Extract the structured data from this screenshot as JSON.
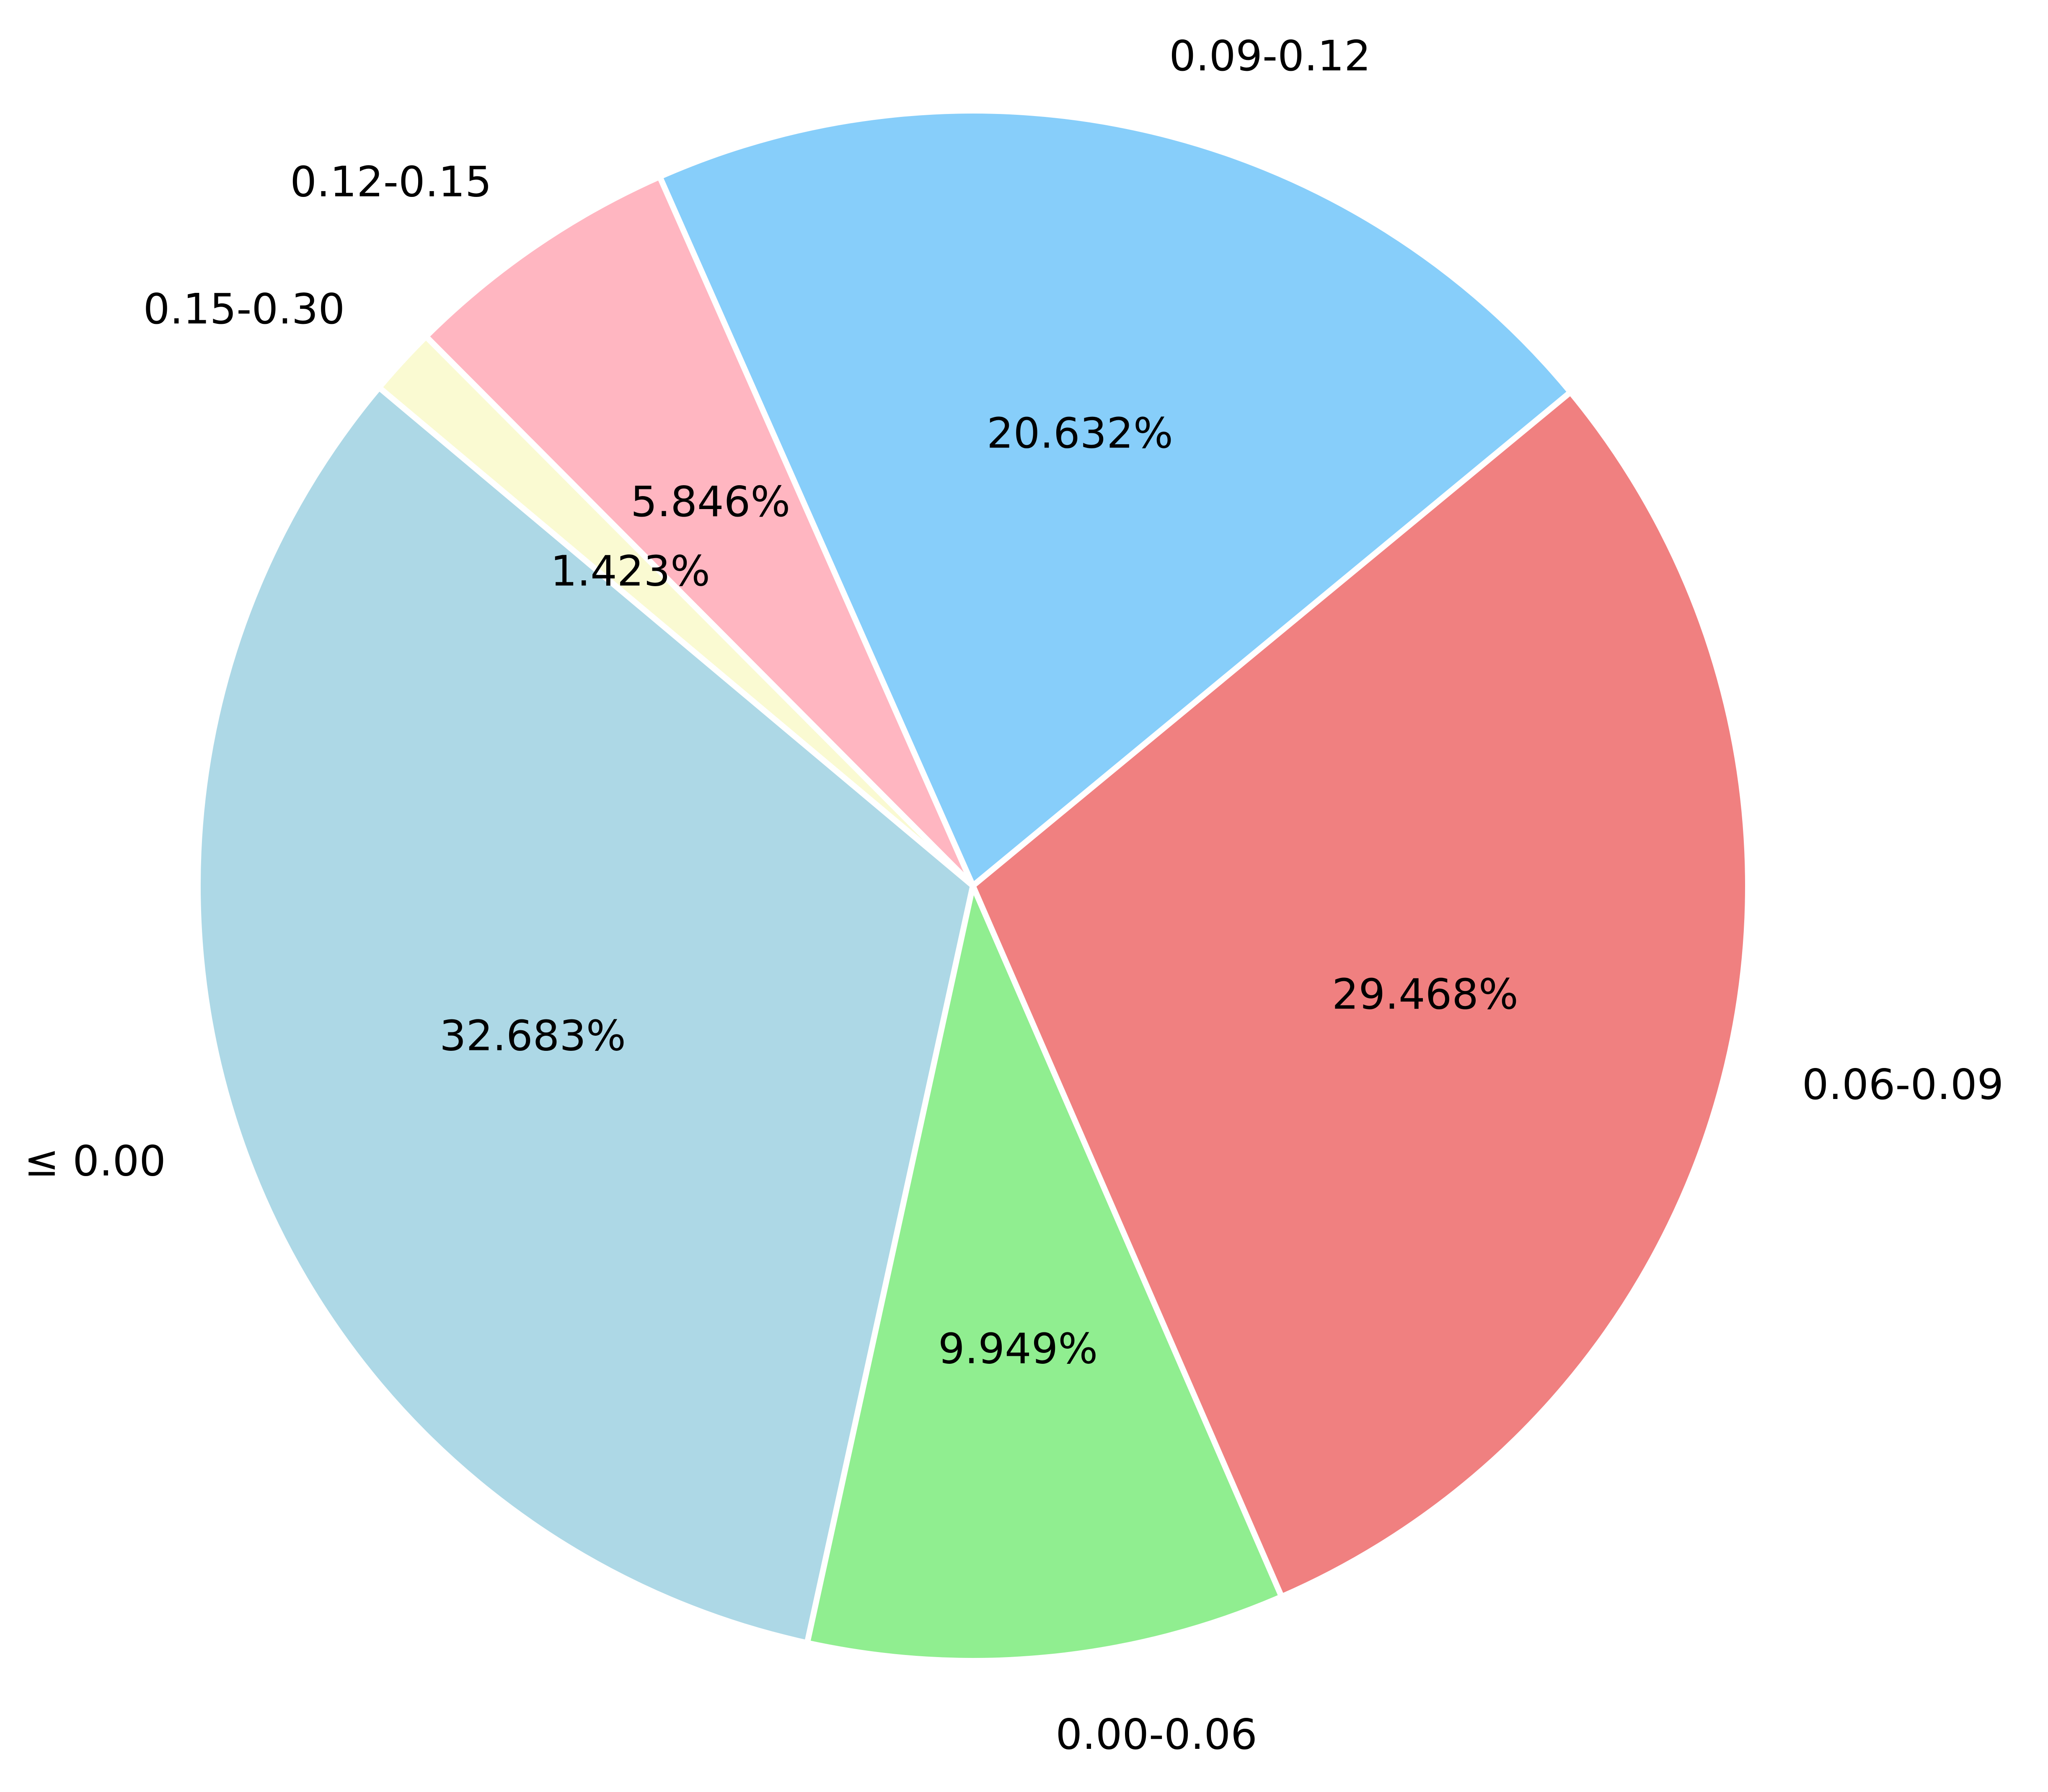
{
  "chart_data": {
    "type": "pie",
    "title": "",
    "slices": [
      {
        "label": "≤ 0.00",
        "value": 32.683,
        "pct_label": "32.683%",
        "color": "#add8e6"
      },
      {
        "label": "0.00-0.06",
        "value": 9.949,
        "pct_label": "9.949%",
        "color": "#90ee90"
      },
      {
        "label": "0.06-0.09",
        "value": 29.468,
        "pct_label": "29.468%",
        "color": "#f08080"
      },
      {
        "label": "0.09-0.12",
        "value": 20.632,
        "pct_label": "20.632%",
        "color": "#87cefa"
      },
      {
        "label": "0.12-0.15",
        "value": 5.846,
        "pct_label": "5.846%",
        "color": "#ffb6c1"
      },
      {
        "label": "0.15-0.30",
        "value": 1.423,
        "pct_label": "1.423%",
        "color": "#fafad2"
      }
    ],
    "start_angle_deg": 140,
    "direction": "counterclockwise",
    "edge_color": "#ffffff",
    "legend": "none"
  }
}
